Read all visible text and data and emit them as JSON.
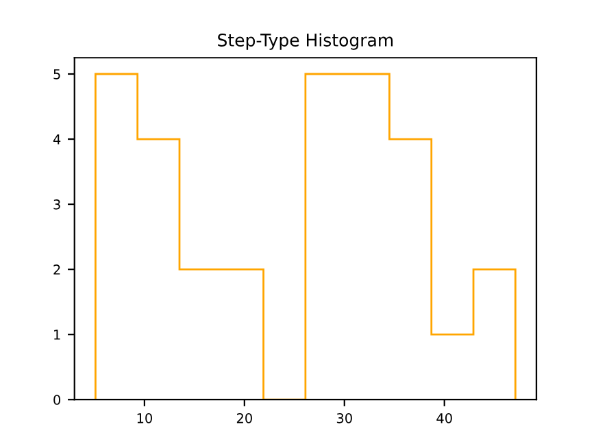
{
  "chart_data": {
    "type": "histogram",
    "title": "Step-Type Histogram",
    "bins": [
      5.1,
      9.3,
      13.5,
      17.7,
      21.9,
      26.1,
      30.3,
      34.5,
      38.7,
      42.9,
      47.1
    ],
    "values": [
      5,
      4,
      2,
      2,
      0,
      5,
      5,
      4,
      1,
      2
    ],
    "color": "#ffa500",
    "xlim": [
      3.0,
      49.2
    ],
    "xticks": [
      10,
      20,
      30,
      40
    ],
    "ylim": [
      0,
      5.25
    ],
    "yticks": [
      0,
      1,
      2,
      3,
      4,
      5
    ],
    "grid": false
  }
}
